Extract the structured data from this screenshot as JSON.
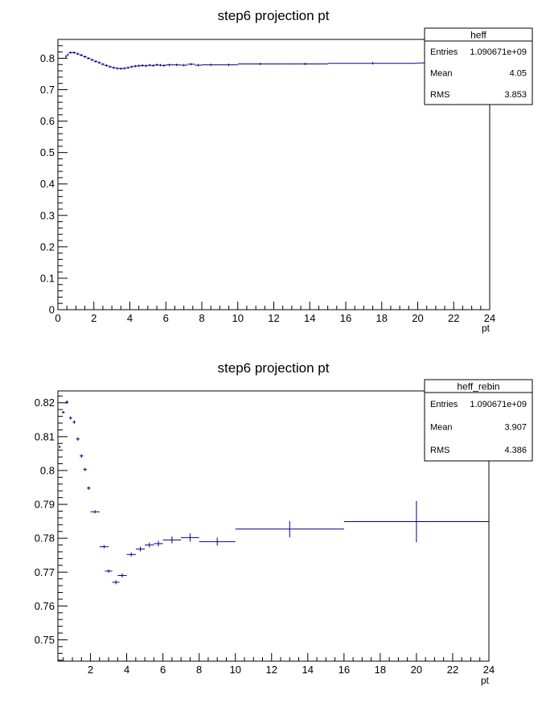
{
  "chart_data": [
    {
      "type": "errorbar",
      "title": "step6 projection pt",
      "xlabel": "pt",
      "ylabel": "",
      "xlim": [
        0,
        24
      ],
      "ylim": [
        0,
        0.86
      ],
      "xticks": [
        "0",
        "2",
        "4",
        "6",
        "8",
        "10",
        "12",
        "14",
        "16",
        "18",
        "20",
        "22",
        "24"
      ],
      "yticks": [
        "0",
        "0.1",
        "0.2",
        "0.3",
        "0.4",
        "0.5",
        "0.6",
        "0.7",
        "0.8"
      ],
      "color": "#00007f",
      "stats": {
        "name": "heff",
        "rows": [
          {
            "label": "Entries",
            "value": "1.090671e+09"
          },
          {
            "label": "Mean",
            "value": "4.05"
          },
          {
            "label": "RMS",
            "value": "3.853"
          }
        ]
      },
      "points": [
        {
          "x": 0.45,
          "y": 0.806,
          "xlo": 0.4,
          "xhi": 0.5
        },
        {
          "x": 0.55,
          "y": 0.811,
          "xlo": 0.5,
          "xhi": 0.6
        },
        {
          "x": 0.7,
          "y": 0.818,
          "xlo": 0.6,
          "xhi": 0.8
        },
        {
          "x": 0.9,
          "y": 0.818,
          "xlo": 0.8,
          "xhi": 1.0
        },
        {
          "x": 1.1,
          "y": 0.814,
          "xlo": 1.0,
          "xhi": 1.2
        },
        {
          "x": 1.3,
          "y": 0.81,
          "xlo": 1.2,
          "xhi": 1.4
        },
        {
          "x": 1.5,
          "y": 0.805,
          "xlo": 1.4,
          "xhi": 1.6
        },
        {
          "x": 1.7,
          "y": 0.8,
          "xlo": 1.6,
          "xhi": 1.8
        },
        {
          "x": 1.9,
          "y": 0.795,
          "xlo": 1.8,
          "xhi": 2.0
        },
        {
          "x": 2.1,
          "y": 0.79,
          "xlo": 2.0,
          "xhi": 2.2
        },
        {
          "x": 2.3,
          "y": 0.786,
          "xlo": 2.2,
          "xhi": 2.4
        },
        {
          "x": 2.5,
          "y": 0.781,
          "xlo": 2.4,
          "xhi": 2.6
        },
        {
          "x": 2.7,
          "y": 0.777,
          "xlo": 2.6,
          "xhi": 2.8
        },
        {
          "x": 2.9,
          "y": 0.773,
          "xlo": 2.8,
          "xhi": 3.0
        },
        {
          "x": 3.1,
          "y": 0.77,
          "xlo": 3.0,
          "xhi": 3.2
        },
        {
          "x": 3.3,
          "y": 0.768,
          "xlo": 3.2,
          "xhi": 3.4
        },
        {
          "x": 3.5,
          "y": 0.767,
          "xlo": 3.4,
          "xhi": 3.6
        },
        {
          "x": 3.7,
          "y": 0.768,
          "xlo": 3.6,
          "xhi": 3.8
        },
        {
          "x": 3.9,
          "y": 0.77,
          "xlo": 3.8,
          "xhi": 4.0
        },
        {
          "x": 4.1,
          "y": 0.773,
          "xlo": 4.0,
          "xhi": 4.2
        },
        {
          "x": 4.3,
          "y": 0.775,
          "xlo": 4.2,
          "xhi": 4.4
        },
        {
          "x": 4.5,
          "y": 0.776,
          "xlo": 4.4,
          "xhi": 4.6
        },
        {
          "x": 4.7,
          "y": 0.777,
          "xlo": 4.6,
          "xhi": 4.8
        },
        {
          "x": 4.9,
          "y": 0.776,
          "xlo": 4.8,
          "xhi": 5.0
        },
        {
          "x": 5.1,
          "y": 0.778,
          "xlo": 5.0,
          "xhi": 5.2
        },
        {
          "x": 5.3,
          "y": 0.777,
          "xlo": 5.2,
          "xhi": 5.4
        },
        {
          "x": 5.5,
          "y": 0.779,
          "xlo": 5.4,
          "xhi": 5.6
        },
        {
          "x": 5.7,
          "y": 0.778,
          "xlo": 5.6,
          "xhi": 5.8
        },
        {
          "x": 5.9,
          "y": 0.777,
          "xlo": 5.8,
          "xhi": 6.0
        },
        {
          "x": 6.2,
          "y": 0.779,
          "xlo": 6.0,
          "xhi": 6.4
        },
        {
          "x": 6.6,
          "y": 0.779,
          "xlo": 6.4,
          "xhi": 6.8
        },
        {
          "x": 7.0,
          "y": 0.778,
          "xlo": 6.8,
          "xhi": 7.2
        },
        {
          "x": 7.4,
          "y": 0.781,
          "xlo": 7.2,
          "xhi": 7.6
        },
        {
          "x": 7.8,
          "y": 0.778,
          "xlo": 7.6,
          "xhi": 8.0
        },
        {
          "x": 8.5,
          "y": 0.779,
          "xlo": 8.0,
          "xhi": 9.0
        },
        {
          "x": 9.5,
          "y": 0.779,
          "xlo": 9.0,
          "xhi": 10.0
        },
        {
          "x": 11.25,
          "y": 0.782,
          "xlo": 10.0,
          "xhi": 12.5
        },
        {
          "x": 13.75,
          "y": 0.782,
          "xlo": 12.5,
          "xhi": 15.0
        },
        {
          "x": 17.5,
          "y": 0.784,
          "xlo": 15.0,
          "xhi": 20.0
        },
        {
          "x": 22.0,
          "y": 0.785,
          "xlo": 20.0,
          "xhi": 24.0
        }
      ]
    },
    {
      "type": "errorbar",
      "title": "step6 projection pt",
      "xlabel": "pt",
      "ylabel": "",
      "xlim": [
        0.2,
        24
      ],
      "ylim": [
        0.7437,
        0.8235
      ],
      "xticks": [
        "2",
        "4",
        "6",
        "8",
        "10",
        "12",
        "14",
        "16",
        "18",
        "20",
        "22",
        "24"
      ],
      "yticks": [
        "0.75",
        "0.76",
        "0.77",
        "0.78",
        "0.79",
        "0.8",
        "0.81",
        "0.82"
      ],
      "color": "#00007f",
      "stats": {
        "name": "heff_rebin",
        "rows": [
          {
            "label": "Entries",
            "value": "1.090671e+09"
          },
          {
            "label": "Mean",
            "value": "3.907"
          },
          {
            "label": "RMS",
            "value": "4.386"
          }
        ]
      },
      "points": [
        {
          "x": 0.3,
          "y": 0.807,
          "xlo": 0.26,
          "xhi": 0.34,
          "ylo": 0.8066,
          "yhi": 0.8074
        },
        {
          "x": 0.5,
          "y": 0.8172,
          "xlo": 0.42,
          "xhi": 0.58,
          "ylo": 0.8168,
          "yhi": 0.8176
        },
        {
          "x": 0.7,
          "y": 0.8202,
          "xlo": 0.62,
          "xhi": 0.78,
          "ylo": 0.8197,
          "yhi": 0.8207
        },
        {
          "x": 0.9,
          "y": 0.8155,
          "xlo": 0.82,
          "xhi": 0.98,
          "ylo": 0.815,
          "yhi": 0.816
        },
        {
          "x": 1.1,
          "y": 0.8143,
          "xlo": 1.02,
          "xhi": 1.18,
          "ylo": 0.8138,
          "yhi": 0.8148
        },
        {
          "x": 1.3,
          "y": 0.8093,
          "xlo": 1.2,
          "xhi": 1.4,
          "ylo": 0.8088,
          "yhi": 0.8098
        },
        {
          "x": 1.5,
          "y": 0.8043,
          "xlo": 1.4,
          "xhi": 1.6,
          "ylo": 0.8038,
          "yhi": 0.8048
        },
        {
          "x": 1.7,
          "y": 0.8003,
          "xlo": 1.6,
          "xhi": 1.8,
          "ylo": 0.7998,
          "yhi": 0.8008
        },
        {
          "x": 1.9,
          "y": 0.7948,
          "xlo": 1.8,
          "xhi": 2.0,
          "ylo": 0.7943,
          "yhi": 0.7953
        },
        {
          "x": 2.25,
          "y": 0.7878,
          "xlo": 2.0,
          "xhi": 2.5,
          "ylo": 0.7873,
          "yhi": 0.7883
        },
        {
          "x": 2.75,
          "y": 0.7775,
          "xlo": 2.5,
          "xhi": 3.0,
          "ylo": 0.777,
          "yhi": 0.778
        },
        {
          "x": 3.0,
          "y": 0.7703,
          "xlo": 2.8,
          "xhi": 3.2,
          "ylo": 0.7698,
          "yhi": 0.7708
        },
        {
          "x": 3.4,
          "y": 0.767,
          "xlo": 3.2,
          "xhi": 3.6,
          "ylo": 0.7664,
          "yhi": 0.7676
        },
        {
          "x": 3.75,
          "y": 0.769,
          "xlo": 3.5,
          "xhi": 4.0,
          "ylo": 0.7684,
          "yhi": 0.7696
        },
        {
          "x": 4.25,
          "y": 0.7752,
          "xlo": 4.0,
          "xhi": 4.5,
          "ylo": 0.7746,
          "yhi": 0.7758
        },
        {
          "x": 4.75,
          "y": 0.7768,
          "xlo": 4.5,
          "xhi": 5.0,
          "ylo": 0.7761,
          "yhi": 0.7775
        },
        {
          "x": 5.25,
          "y": 0.778,
          "xlo": 5.0,
          "xhi": 5.5,
          "ylo": 0.7773,
          "yhi": 0.7787
        },
        {
          "x": 5.75,
          "y": 0.7784,
          "xlo": 5.5,
          "xhi": 6.0,
          "ylo": 0.7776,
          "yhi": 0.7792
        },
        {
          "x": 6.5,
          "y": 0.7795,
          "xlo": 6.0,
          "xhi": 7.0,
          "ylo": 0.7785,
          "yhi": 0.7805
        },
        {
          "x": 7.5,
          "y": 0.7802,
          "xlo": 7.0,
          "xhi": 8.0,
          "ylo": 0.779,
          "yhi": 0.7814
        },
        {
          "x": 9.0,
          "y": 0.779,
          "xlo": 8.0,
          "xhi": 10.0,
          "ylo": 0.7778,
          "yhi": 0.7802
        },
        {
          "x": 13.0,
          "y": 0.7827,
          "xlo": 10.0,
          "xhi": 16.0,
          "ylo": 0.7803,
          "yhi": 0.7851
        },
        {
          "x": 20.0,
          "y": 0.7849,
          "xlo": 16.0,
          "xhi": 24.0,
          "ylo": 0.7788,
          "yhi": 0.791
        }
      ]
    }
  ]
}
